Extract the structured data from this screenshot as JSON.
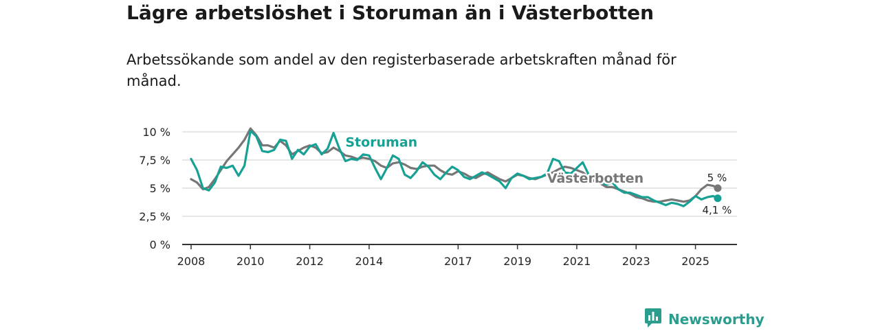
{
  "header": {
    "title": "Lägre arbetslöshet i Storuman än i Västerbotten",
    "subtitle": "Arbetssökande som andel av den registerbaserade arbetskraften månad för månad."
  },
  "brand": {
    "name": "Newsworthy",
    "icon": "newsworthy-logo-icon"
  },
  "colors": {
    "storuman": "#16a194",
    "vasterbotten": "#767676",
    "grid": "#dddddd",
    "axis": "#333333"
  },
  "chart_data": {
    "type": "line",
    "title": "Lägre arbetslöshet i Storuman än i Västerbotten",
    "subtitle": "Arbetssökande som andel av den registerbaserade arbetskraften månad för månad.",
    "xlabel": "",
    "ylabel": "",
    "xlim": [
      2007.7,
      2026.4
    ],
    "ylim": [
      0,
      10
    ],
    "grid": true,
    "y_ticks": [
      {
        "value": 0,
        "label": "0 %"
      },
      {
        "value": 2.5,
        "label": "2,5 %"
      },
      {
        "value": 5,
        "label": "5 %"
      },
      {
        "value": 7.5,
        "label": "7,5 %"
      },
      {
        "value": 10,
        "label": "10 %"
      }
    ],
    "x_ticks": [
      {
        "value": 2008,
        "label": "2008"
      },
      {
        "value": 2010,
        "label": "2010"
      },
      {
        "value": 2012,
        "label": "2012"
      },
      {
        "value": 2014,
        "label": "2014"
      },
      {
        "value": 2017,
        "label": "2017"
      },
      {
        "value": 2019,
        "label": "2019"
      },
      {
        "value": 2021,
        "label": "2021"
      },
      {
        "value": 2023,
        "label": "2023"
      },
      {
        "value": 2025,
        "label": "2025"
      }
    ],
    "series": [
      {
        "name": "Västerbotten",
        "key": "vasterbotten",
        "end_label": "5 %",
        "points": [
          [
            2008.0,
            5.8
          ],
          [
            2008.2,
            5.5
          ],
          [
            2008.4,
            4.9
          ],
          [
            2008.6,
            5.1
          ],
          [
            2008.8,
            5.8
          ],
          [
            2009.0,
            6.6
          ],
          [
            2009.2,
            7.4
          ],
          [
            2009.4,
            8.0
          ],
          [
            2009.6,
            8.6
          ],
          [
            2009.8,
            9.3
          ],
          [
            2010.0,
            10.3
          ],
          [
            2010.2,
            9.7
          ],
          [
            2010.4,
            8.8
          ],
          [
            2010.6,
            8.8
          ],
          [
            2010.8,
            8.6
          ],
          [
            2011.0,
            9.2
          ],
          [
            2011.2,
            8.8
          ],
          [
            2011.4,
            8.0
          ],
          [
            2011.6,
            8.3
          ],
          [
            2011.8,
            8.6
          ],
          [
            2012.0,
            8.8
          ],
          [
            2012.2,
            8.6
          ],
          [
            2012.4,
            8.1
          ],
          [
            2012.6,
            8.2
          ],
          [
            2012.8,
            8.6
          ],
          [
            2013.0,
            8.3
          ],
          [
            2013.2,
            7.9
          ],
          [
            2013.4,
            7.8
          ],
          [
            2013.6,
            7.6
          ],
          [
            2013.8,
            7.7
          ],
          [
            2014.0,
            7.6
          ],
          [
            2014.2,
            7.4
          ],
          [
            2014.4,
            7.0
          ],
          [
            2014.6,
            6.8
          ],
          [
            2014.8,
            7.2
          ],
          [
            2015.0,
            7.3
          ],
          [
            2015.2,
            7.1
          ],
          [
            2015.4,
            6.8
          ],
          [
            2015.6,
            6.7
          ],
          [
            2015.8,
            6.9
          ],
          [
            2016.0,
            7.0
          ],
          [
            2016.2,
            7.0
          ],
          [
            2016.4,
            6.6
          ],
          [
            2016.6,
            6.3
          ],
          [
            2016.8,
            6.2
          ],
          [
            2017.0,
            6.5
          ],
          [
            2017.2,
            6.3
          ],
          [
            2017.4,
            6.0
          ],
          [
            2017.6,
            5.9
          ],
          [
            2017.8,
            6.2
          ],
          [
            2018.0,
            6.4
          ],
          [
            2018.2,
            6.1
          ],
          [
            2018.4,
            5.8
          ],
          [
            2018.6,
            5.6
          ],
          [
            2018.8,
            5.9
          ],
          [
            2019.0,
            6.2
          ],
          [
            2019.2,
            6.1
          ],
          [
            2019.4,
            5.9
          ],
          [
            2019.6,
            5.8
          ],
          [
            2019.8,
            6.0
          ],
          [
            2020.0,
            6.2
          ],
          [
            2020.2,
            6.4
          ],
          [
            2020.4,
            6.7
          ],
          [
            2020.6,
            6.9
          ],
          [
            2020.8,
            6.8
          ],
          [
            2021.0,
            6.6
          ],
          [
            2021.2,
            6.4
          ],
          [
            2021.4,
            6.0
          ],
          [
            2021.6,
            5.6
          ],
          [
            2021.8,
            5.4
          ],
          [
            2022.0,
            5.1
          ],
          [
            2022.2,
            5.1
          ],
          [
            2022.4,
            4.9
          ],
          [
            2022.6,
            4.7
          ],
          [
            2022.8,
            4.5
          ],
          [
            2023.0,
            4.2
          ],
          [
            2023.2,
            4.1
          ],
          [
            2023.4,
            3.9
          ],
          [
            2023.6,
            3.8
          ],
          [
            2023.8,
            3.8
          ],
          [
            2024.0,
            3.9
          ],
          [
            2024.2,
            4.0
          ],
          [
            2024.4,
            3.9
          ],
          [
            2024.6,
            3.8
          ],
          [
            2024.8,
            3.9
          ],
          [
            2025.0,
            4.3
          ],
          [
            2025.2,
            4.9
          ],
          [
            2025.4,
            5.3
          ],
          [
            2025.6,
            5.2
          ],
          [
            2025.75,
            5.0
          ]
        ]
      },
      {
        "name": "Storuman",
        "key": "storuman",
        "end_label": "4,1 %",
        "points": [
          [
            2008.0,
            7.6
          ],
          [
            2008.2,
            6.6
          ],
          [
            2008.4,
            5.0
          ],
          [
            2008.6,
            4.8
          ],
          [
            2008.8,
            5.5
          ],
          [
            2009.0,
            6.9
          ],
          [
            2009.2,
            6.8
          ],
          [
            2009.4,
            7.0
          ],
          [
            2009.6,
            6.1
          ],
          [
            2009.8,
            7.0
          ],
          [
            2010.0,
            10.1
          ],
          [
            2010.2,
            9.6
          ],
          [
            2010.4,
            8.3
          ],
          [
            2010.6,
            8.2
          ],
          [
            2010.8,
            8.4
          ],
          [
            2011.0,
            9.3
          ],
          [
            2011.2,
            9.2
          ],
          [
            2011.4,
            7.6
          ],
          [
            2011.6,
            8.4
          ],
          [
            2011.8,
            8.0
          ],
          [
            2012.0,
            8.7
          ],
          [
            2012.2,
            8.9
          ],
          [
            2012.4,
            8.0
          ],
          [
            2012.6,
            8.5
          ],
          [
            2012.8,
            9.9
          ],
          [
            2013.0,
            8.5
          ],
          [
            2013.2,
            7.4
          ],
          [
            2013.4,
            7.6
          ],
          [
            2013.6,
            7.5
          ],
          [
            2013.8,
            8.0
          ],
          [
            2014.0,
            7.9
          ],
          [
            2014.2,
            6.8
          ],
          [
            2014.4,
            5.8
          ],
          [
            2014.6,
            6.8
          ],
          [
            2014.8,
            7.9
          ],
          [
            2015.0,
            7.6
          ],
          [
            2015.2,
            6.2
          ],
          [
            2015.4,
            5.9
          ],
          [
            2015.6,
            6.5
          ],
          [
            2015.8,
            7.3
          ],
          [
            2016.0,
            6.9
          ],
          [
            2016.2,
            6.2
          ],
          [
            2016.4,
            5.8
          ],
          [
            2016.6,
            6.4
          ],
          [
            2016.8,
            6.9
          ],
          [
            2017.0,
            6.6
          ],
          [
            2017.2,
            6.0
          ],
          [
            2017.4,
            5.8
          ],
          [
            2017.6,
            6.1
          ],
          [
            2017.8,
            6.4
          ],
          [
            2018.0,
            6.2
          ],
          [
            2018.2,
            5.9
          ],
          [
            2018.4,
            5.6
          ],
          [
            2018.6,
            5.0
          ],
          [
            2018.8,
            5.9
          ],
          [
            2019.0,
            6.3
          ],
          [
            2019.2,
            6.1
          ],
          [
            2019.4,
            5.8
          ],
          [
            2019.6,
            5.9
          ],
          [
            2019.8,
            6.0
          ],
          [
            2020.0,
            6.3
          ],
          [
            2020.2,
            7.6
          ],
          [
            2020.4,
            7.4
          ],
          [
            2020.6,
            6.4
          ],
          [
            2020.8,
            6.3
          ],
          [
            2021.0,
            6.8
          ],
          [
            2021.2,
            7.3
          ],
          [
            2021.4,
            6.2
          ],
          [
            2021.6,
            6.0
          ],
          [
            2021.8,
            5.6
          ],
          [
            2022.0,
            5.3
          ],
          [
            2022.2,
            5.5
          ],
          [
            2022.4,
            4.9
          ],
          [
            2022.6,
            4.6
          ],
          [
            2022.8,
            4.6
          ],
          [
            2023.0,
            4.4
          ],
          [
            2023.2,
            4.2
          ],
          [
            2023.4,
            4.2
          ],
          [
            2023.6,
            3.9
          ],
          [
            2023.8,
            3.7
          ],
          [
            2024.0,
            3.5
          ],
          [
            2024.2,
            3.7
          ],
          [
            2024.4,
            3.6
          ],
          [
            2024.6,
            3.4
          ],
          [
            2024.8,
            3.8
          ],
          [
            2025.0,
            4.3
          ],
          [
            2025.2,
            4.0
          ],
          [
            2025.4,
            4.2
          ],
          [
            2025.6,
            4.3
          ],
          [
            2025.75,
            4.1
          ]
        ]
      }
    ],
    "annotations": [
      {
        "series": "storuman",
        "text": "Storuman",
        "x": 2013.2,
        "y": 8.7
      },
      {
        "series": "vasterbotten",
        "text": "Västerbotten",
        "x": 2020.0,
        "y": 5.5
      }
    ]
  }
}
